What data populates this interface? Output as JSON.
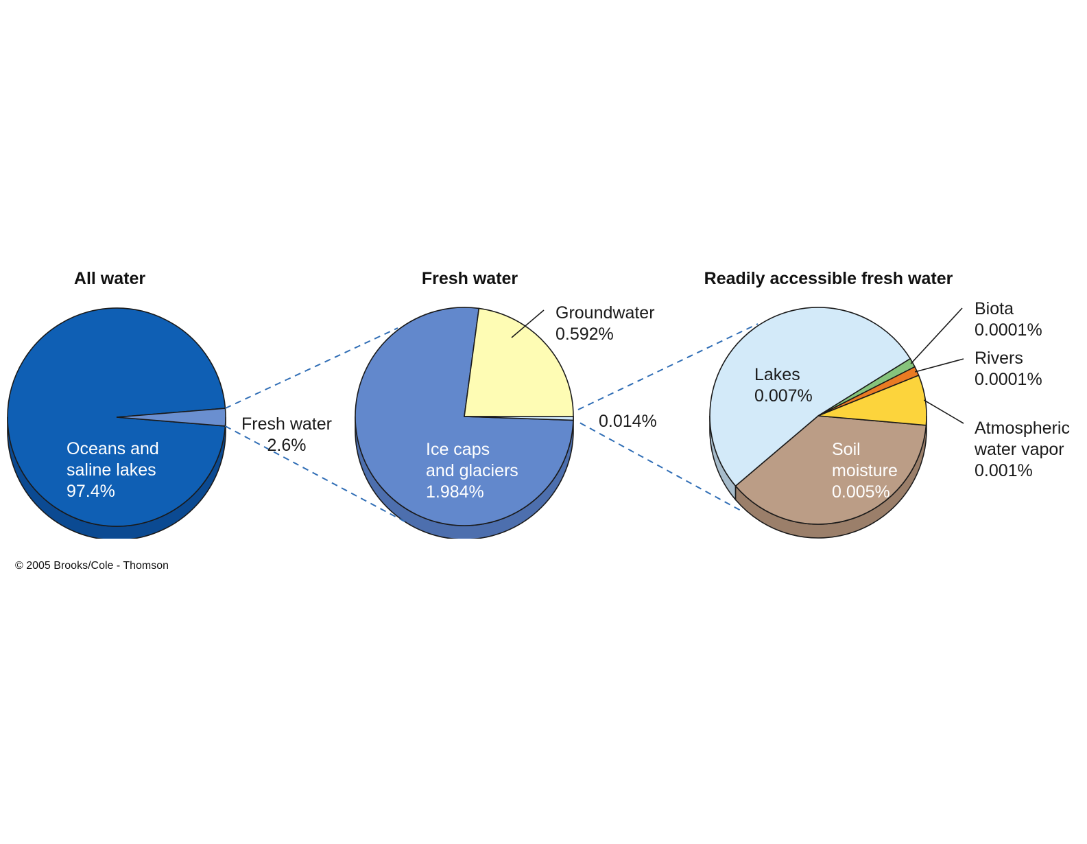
{
  "chart_data": [
    {
      "type": "pie",
      "title": "All water",
      "slices": [
        {
          "label_lines": [
            "Oceans and",
            "saline lakes",
            "97.4%"
          ],
          "value": 97.4,
          "color": "#0f5fb4"
        },
        {
          "label_lines": [
            "Fresh water",
            "2.6%"
          ],
          "value": 2.6,
          "color": "#6a8fd0"
        }
      ]
    },
    {
      "type": "pie",
      "title": "Fresh water",
      "slices": [
        {
          "label_lines": [
            "Groundwater",
            "0.592%"
          ],
          "value": 0.592,
          "color": "#fefcb4"
        },
        {
          "label_lines": [
            "0.014%"
          ],
          "value": 0.014,
          "color": "#cde6f9"
        },
        {
          "label_lines": [
            "Ice caps",
            "and glaciers",
            "1.984%"
          ],
          "value": 1.984,
          "color": "#6288cc"
        }
      ]
    },
    {
      "type": "pie",
      "title": "Readily accessible fresh water",
      "slices": [
        {
          "label_lines": [
            "Lakes",
            "0.007%"
          ],
          "value": 0.007,
          "color": "#d3eaf9"
        },
        {
          "label_lines": [
            "Biota",
            "0.0001%"
          ],
          "value": 0.0001,
          "color": "#86c47c"
        },
        {
          "label_lines": [
            "Rivers",
            "0.0001%"
          ],
          "value": 0.0001,
          "color": "#ea7b23"
        },
        {
          "label_lines": [
            "Atmospheric",
            "water vapor",
            "0.001%"
          ],
          "value": 0.001,
          "color": "#fcd43c"
        },
        {
          "label_lines": [
            "Soil",
            "moisture",
            "0.005%"
          ],
          "value": 0.005,
          "color": "#bb9d86"
        }
      ]
    }
  ],
  "copyright": "© 2005 Brooks/Cole - Thomson",
  "colors": {
    "oceans": "#0f5fb4",
    "oceans_side": "#0b4a92",
    "fresh": "#6a8fd0",
    "ice_side": "#4d6fae",
    "lakes_side": "#a7bccb",
    "soil_side": "#9b7f6a",
    "dash": "#2f6db5"
  }
}
